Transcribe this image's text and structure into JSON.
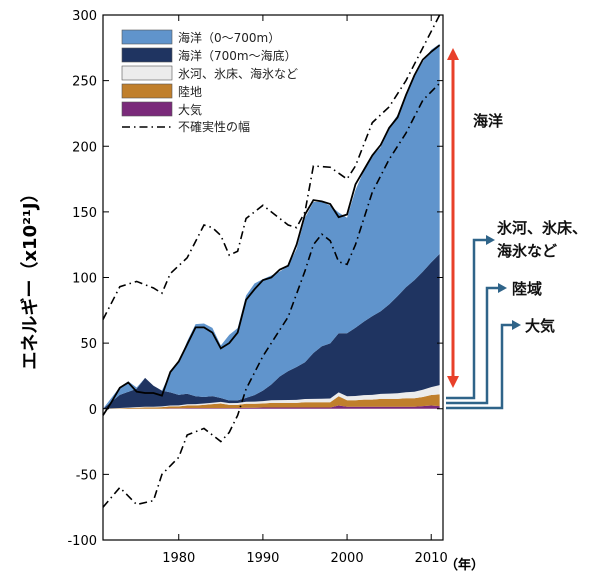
{
  "chart_data": {
    "type": "area",
    "title": "",
    "xlabel": "（年）",
    "ylabel": "エネルギー（x10²¹J）",
    "xlim": [
      1971,
      2011.4
    ],
    "ylim": [
      -100,
      300
    ],
    "yticks": [
      -100,
      -50,
      0,
      50,
      100,
      150,
      200,
      250,
      300
    ],
    "xticks": [
      1980,
      1990,
      2000,
      2010
    ],
    "grid": false,
    "legend_position": "top-left",
    "years": [
      1971,
      1972,
      1973,
      1974,
      1975,
      1976,
      1977,
      1978,
      1979,
      1980,
      1981,
      1982,
      1983,
      1984,
      1985,
      1986,
      1987,
      1988,
      1989,
      1990,
      1991,
      1992,
      1993,
      1994,
      1995,
      1996,
      1997,
      1998,
      1999,
      2000,
      2001,
      2002,
      2003,
      2004,
      2005,
      2006,
      2007,
      2008,
      2009,
      2010,
      2011
    ],
    "series": [
      {
        "name": "大気",
        "color": "#7a2a7a",
        "values": [
          0,
          0,
          0,
          0,
          0,
          0,
          0,
          0,
          0.3,
          0.3,
          0.5,
          0.5,
          0.5,
          0.5,
          0.5,
          0.5,
          0.5,
          0.8,
          0.8,
          1,
          1,
          1,
          1,
          1,
          1,
          1,
          1,
          1,
          2.5,
          1.5,
          1.5,
          1.5,
          1.5,
          1.5,
          1.5,
          1.5,
          1.5,
          1.5,
          2,
          2.5,
          2
        ]
      },
      {
        "name": "陸地",
        "color": "#c07f2c",
        "values": [
          0,
          0.2,
          0.4,
          0.6,
          0.8,
          1,
          1,
          1.2,
          1.5,
          1.5,
          2,
          2,
          2.5,
          3,
          3.5,
          2.5,
          2.5,
          3,
          3,
          3,
          3.5,
          3.5,
          3.5,
          3.5,
          4,
          4,
          4,
          4,
          7,
          5,
          5,
          5.5,
          5.5,
          6,
          6,
          6,
          6.5,
          6.5,
          7,
          8,
          9
        ]
      },
      {
        "name": "氷河、氷床、海氷など",
        "color": "#ececec",
        "values": [
          0,
          0.1,
          0.2,
          0.3,
          0.4,
          0.5,
          0.5,
          0.6,
          0.7,
          0.8,
          0.9,
          1,
          1,
          1.1,
          1.2,
          1.3,
          1.4,
          1.5,
          1.6,
          1.8,
          2,
          2.1,
          2.2,
          2.3,
          2.4,
          2.5,
          2.6,
          2.8,
          3,
          3,
          3.2,
          3.4,
          3.6,
          3.8,
          4,
          4.3,
          4.6,
          5,
          5.5,
          6,
          7
        ]
      },
      {
        "name": "海洋（700m～海底）",
        "color": "#1f3461",
        "values": [
          0,
          5,
          10,
          12,
          14,
          22,
          16,
          12,
          10,
          8,
          8,
          6,
          5,
          5,
          3,
          2,
          2,
          3,
          5,
          8,
          12,
          18,
          22,
          25,
          28,
          35,
          40,
          42,
          45,
          48,
          52,
          56,
          60,
          63,
          68,
          74,
          80,
          85,
          90,
          95,
          100
        ]
      },
      {
        "name": "海洋（0～700m）",
        "color": "#6094cc",
        "values": [
          0,
          3,
          6,
          8,
          1,
          0,
          0,
          0,
          15,
          25,
          40,
          55,
          56,
          52,
          40,
          50,
          55,
          78,
          85,
          85,
          83,
          80,
          80,
          90,
          110,
          115,
          110,
          105,
          92,
          88,
          105,
          115,
          122,
          125,
          135,
          138,
          148,
          155,
          160,
          162,
          160
        ]
      }
    ],
    "total": [
      -5,
      5,
      16,
      20,
      13,
      12,
      12,
      10,
      28,
      36,
      49,
      62,
      62,
      58,
      46,
      50,
      58,
      83,
      91,
      98,
      100,
      106,
      109,
      125,
      148,
      159,
      158,
      156,
      146,
      148,
      171,
      182,
      193,
      201,
      214,
      222,
      239,
      254,
      266,
      272,
      277
    ],
    "uncertainty": {
      "name": "不確実性の幅",
      "upper": [
        [
          1971,
          68
        ],
        [
          1973,
          93
        ],
        [
          1975,
          97
        ],
        [
          1977,
          92
        ],
        [
          1978,
          88
        ],
        [
          1979,
          103
        ],
        [
          1981,
          115
        ],
        [
          1983,
          140
        ],
        [
          1984,
          138
        ],
        [
          1985,
          132
        ],
        [
          1986,
          117
        ],
        [
          1987,
          120
        ],
        [
          1988,
          145
        ],
        [
          1990,
          155
        ],
        [
          1991,
          150
        ],
        [
          1993,
          140
        ],
        [
          1994,
          138
        ],
        [
          1995,
          150
        ],
        [
          1996,
          185
        ],
        [
          1998,
          184
        ],
        [
          2000,
          175
        ],
        [
          2001,
          185
        ],
        [
          2003,
          218
        ],
        [
          2005,
          230
        ],
        [
          2007,
          250
        ],
        [
          2009,
          275
        ],
        [
          2011,
          300
        ]
      ],
      "lower": [
        [
          1971,
          -75
        ],
        [
          1973,
          -60
        ],
        [
          1975,
          -73
        ],
        [
          1977,
          -70
        ],
        [
          1978,
          -50
        ],
        [
          1980,
          -37
        ],
        [
          1981,
          -20
        ],
        [
          1983,
          -15
        ],
        [
          1985,
          -25
        ],
        [
          1986,
          -18
        ],
        [
          1987,
          -5
        ],
        [
          1988,
          15
        ],
        [
          1990,
          40
        ],
        [
          1991,
          50
        ],
        [
          1993,
          70
        ],
        [
          1995,
          105
        ],
        [
          1996,
          125
        ],
        [
          1997,
          133
        ],
        [
          1998,
          128
        ],
        [
          1999,
          112
        ],
        [
          2000,
          110
        ],
        [
          2001,
          125
        ],
        [
          2003,
          165
        ],
        [
          2005,
          190
        ],
        [
          2007,
          210
        ],
        [
          2009,
          235
        ],
        [
          2011,
          248
        ]
      ]
    },
    "legend": [
      "海洋（0～700m）",
      "海洋（700m～海底）",
      "氷河、氷床、海氷など",
      "陸地",
      "大気",
      "不確実性の幅"
    ],
    "annotations": {
      "ocean": "海洋",
      "ice": [
        "氷河、氷床、",
        "海氷など"
      ],
      "land": "陸域",
      "atmosphere": "大気"
    },
    "colors": {
      "arrow_red": "#e8402a",
      "arrow_blue": "#2f6489"
    }
  }
}
